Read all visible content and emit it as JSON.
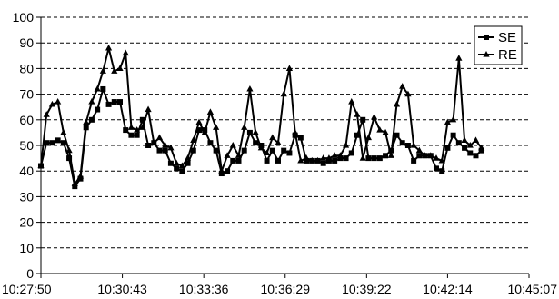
{
  "chart_data": {
    "type": "line",
    "title": "",
    "xlabel": "",
    "ylabel": "",
    "ylim": [
      0,
      100
    ],
    "y_ticks": [
      0,
      10,
      20,
      30,
      40,
      50,
      60,
      70,
      80,
      90,
      100
    ],
    "x_tick_labels": [
      "10:27:50",
      "10:30:43",
      "10:33:36",
      "10:36:29",
      "10:39:22",
      "10:42:14",
      "10:45:07"
    ],
    "x_start_label": "10:27:50",
    "x_end_label": "10:45:07",
    "grid": "horizontal dashed",
    "legend_position": "top-right",
    "x": [
      "10:27:50",
      "10:28:02",
      "10:28:14",
      "10:28:26",
      "10:28:38",
      "10:28:50",
      "10:29:02",
      "10:29:14",
      "10:29:26",
      "10:29:38",
      "10:29:50",
      "10:30:02",
      "10:30:14",
      "10:30:26",
      "10:30:38",
      "10:30:50",
      "10:31:02",
      "10:31:14",
      "10:31:26",
      "10:31:38",
      "10:31:50",
      "10:32:02",
      "10:32:14",
      "10:32:26",
      "10:32:38",
      "10:32:50",
      "10:33:02",
      "10:33:14",
      "10:33:26",
      "10:33:38",
      "10:33:50",
      "10:34:02",
      "10:34:14",
      "10:34:26",
      "10:34:38",
      "10:34:50",
      "10:35:02",
      "10:35:14",
      "10:35:26",
      "10:35:38",
      "10:35:50",
      "10:36:02",
      "10:36:14",
      "10:36:26",
      "10:36:38",
      "10:36:50",
      "10:37:02",
      "10:37:14",
      "10:37:26",
      "10:37:38",
      "10:37:50",
      "10:38:02",
      "10:38:14",
      "10:38:26",
      "10:38:38",
      "10:38:50",
      "10:39:02",
      "10:39:14",
      "10:39:26",
      "10:39:38",
      "10:39:50",
      "10:40:02",
      "10:40:14",
      "10:40:26",
      "10:40:38",
      "10:40:50",
      "10:41:02",
      "10:41:14",
      "10:41:26",
      "10:41:38",
      "10:41:50",
      "10:42:02",
      "10:42:14",
      "10:42:26",
      "10:42:38",
      "10:42:50",
      "10:43:02",
      "10:43:14",
      "10:43:26"
    ],
    "series": [
      {
        "name": "SE",
        "marker": "square",
        "color": "#000000",
        "values": [
          42,
          51,
          51,
          52,
          51,
          45,
          34,
          37,
          57,
          60,
          64,
          72,
          66,
          67,
          67,
          56,
          54,
          54,
          60,
          50,
          51,
          48,
          48,
          43,
          41,
          40,
          43,
          48,
          56,
          56,
          51,
          48,
          39,
          40,
          44,
          44,
          48,
          55,
          51,
          50,
          44,
          48,
          44,
          48,
          47,
          54,
          53,
          44,
          44,
          44,
          43,
          44,
          44,
          45,
          45,
          47,
          54,
          60,
          45,
          45,
          45,
          46,
          48,
          54,
          51,
          50,
          44,
          46,
          46,
          46,
          41,
          40,
          49,
          54,
          51,
          49,
          47,
          46,
          48
        ]
      },
      {
        "name": "RE",
        "marker": "triangle",
        "color": "#000000",
        "values": [
          42,
          62,
          66,
          67,
          55,
          48,
          35,
          38,
          59,
          67,
          72,
          79,
          88,
          79,
          80,
          86,
          57,
          56,
          57,
          64,
          51,
          53,
          50,
          49,
          43,
          42,
          45,
          52,
          59,
          55,
          63,
          57,
          40,
          46,
          50,
          46,
          57,
          72,
          55,
          49,
          47,
          53,
          51,
          70,
          80,
          55,
          44,
          45,
          44,
          44,
          45,
          45,
          46,
          46,
          50,
          67,
          62,
          45,
          53,
          61,
          56,
          55,
          46,
          66,
          73,
          70,
          50,
          48,
          46,
          46,
          45,
          44,
          59,
          60,
          84,
          52,
          50,
          52,
          49
        ]
      }
    ]
  }
}
